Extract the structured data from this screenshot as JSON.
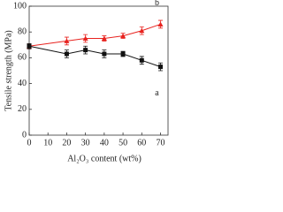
{
  "chart_data": {
    "type": "line",
    "x_label": "Al₂O₃ content (wt%)",
    "y_label": "Tensile strength (MPa)",
    "x": [
      0,
      20,
      30,
      40,
      50,
      60,
      70
    ],
    "series": [
      {
        "name": "b",
        "color": "#e8231f",
        "marker": "triangle",
        "values": [
          69,
          73,
          75,
          75,
          77,
          81,
          86
        ],
        "errors": [
          2,
          3,
          3,
          2,
          2,
          3,
          3
        ]
      },
      {
        "name": "a",
        "color": "#111111",
        "marker": "square",
        "values": [
          69,
          63,
          66,
          63,
          63,
          58,
          53
        ],
        "errors": [
          2,
          3,
          3,
          3,
          2,
          3,
          3
        ]
      }
    ],
    "xlim": [
      0,
      74
    ],
    "xticks": [
      0,
      10,
      20,
      30,
      40,
      50,
      60,
      70
    ],
    "ylim": [
      0,
      100
    ],
    "yticks": [
      0,
      20,
      40,
      60,
      80,
      100
    ]
  }
}
